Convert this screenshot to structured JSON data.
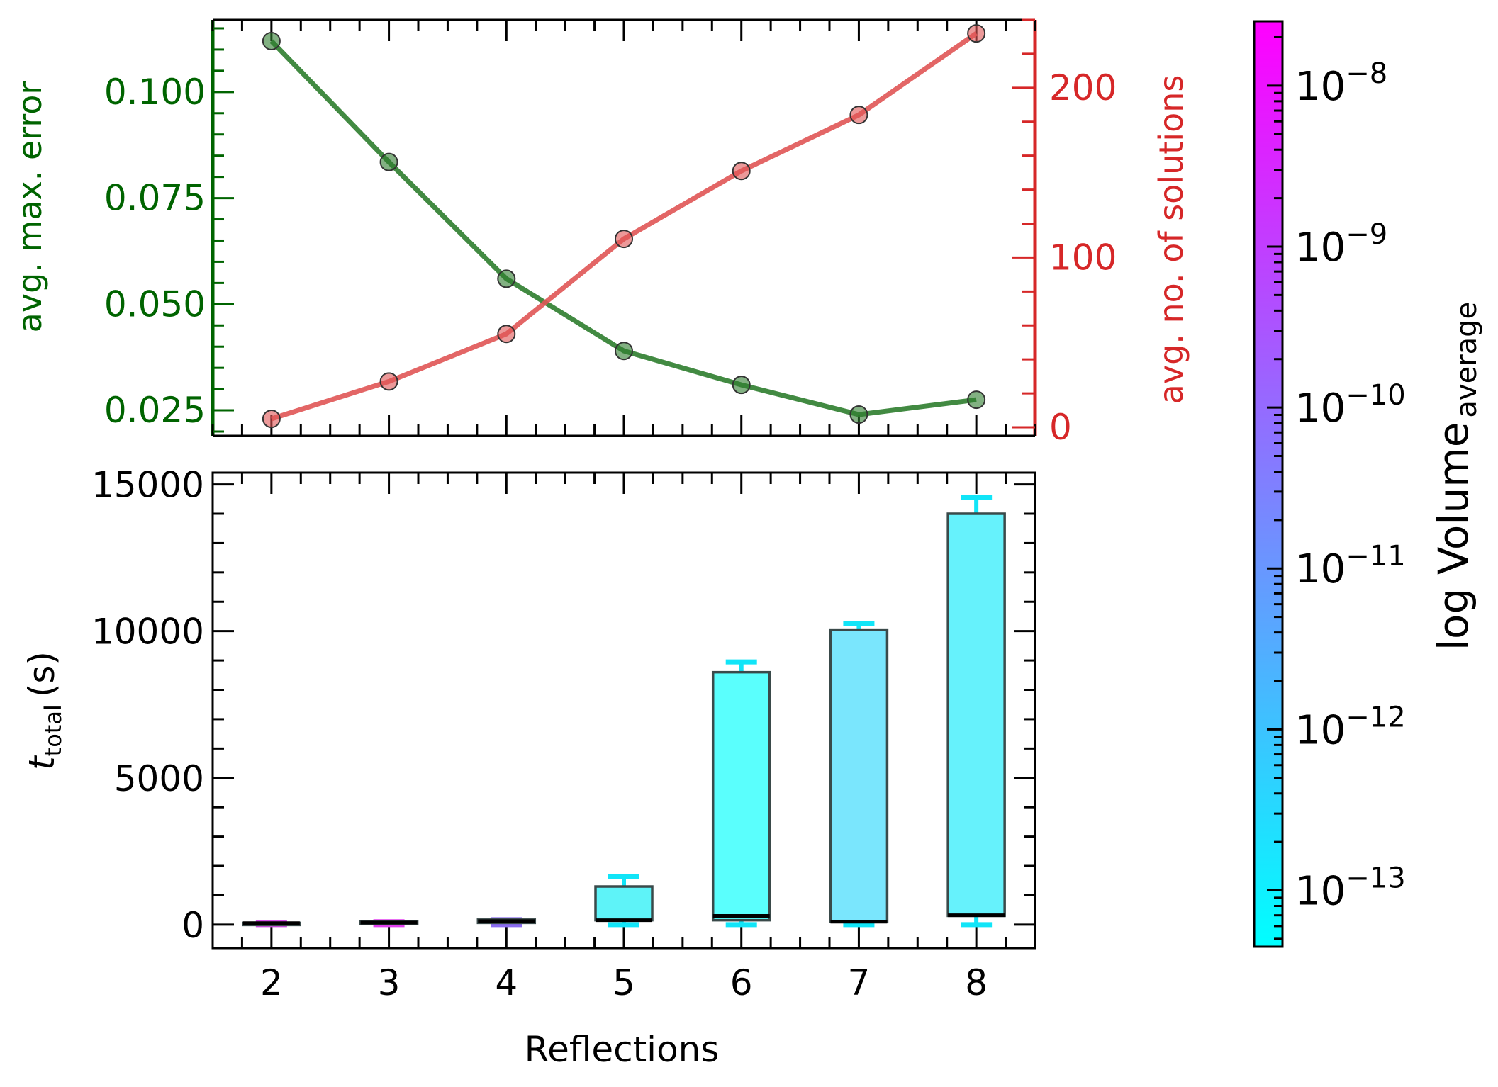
{
  "chart_data": [
    {
      "type": "line",
      "panel": "top",
      "x": [
        2,
        3,
        4,
        5,
        6,
        7,
        8
      ],
      "xlim": [
        1.5,
        8.5
      ],
      "series": [
        {
          "axis": "left",
          "color": "#2e7d2e",
          "values": [
            0.112,
            0.0835,
            0.056,
            0.039,
            0.031,
            0.024,
            0.0275
          ]
        },
        {
          "axis": "right",
          "color": "#e05555",
          "values": [
            5,
            27,
            55,
            111,
            151,
            184,
            232
          ]
        }
      ],
      "left_axis": {
        "label": "avg. max. error",
        "color": "#006400",
        "ylim": [
          0.019,
          0.117
        ],
        "ticks": [
          0.025,
          0.05,
          0.075,
          0.1
        ],
        "tick_labels": [
          "0.025",
          "0.050",
          "0.075",
          "0.100"
        ]
      },
      "right_axis": {
        "label": "avg. no. of solutions",
        "color": "#d62728",
        "ylim": [
          -5,
          240
        ],
        "ticks": [
          0,
          100,
          200
        ],
        "tick_labels": [
          "0",
          "100",
          "200"
        ]
      }
    },
    {
      "type": "bar",
      "panel": "bottom",
      "categories": [
        "2",
        "3",
        "4",
        "5",
        "6",
        "7",
        "8"
      ],
      "x": [
        2,
        3,
        4,
        5,
        6,
        7,
        8
      ],
      "xlim": [
        1.5,
        8.5
      ],
      "ylim": [
        -800,
        15400
      ],
      "box_low": [
        20,
        40,
        60,
        150,
        150,
        100,
        300
      ],
      "box_high": [
        60,
        100,
        170,
        1300,
        8600,
        10050,
        14000
      ],
      "median": [
        50,
        70,
        120,
        150,
        300,
        100,
        320
      ],
      "whisker_low": [
        0,
        0,
        0,
        0,
        0,
        0,
        0
      ],
      "whisker_high": [
        60,
        100,
        170,
        1650,
        8950,
        10250,
        14550
      ],
      "box_colors": [
        "#f03ef0",
        "#e53ff1",
        "#a36cf2",
        "#5ef3f8",
        "#5afffd",
        "#7ae6fd",
        "#66f2fc"
      ],
      "whisker_colors": [
        "#d44ee6",
        "#e040ee",
        "#8a6cf0",
        "#11e5f8",
        "#11e5f8",
        "#11e5f8",
        "#11e5f8"
      ],
      "xlabel": "Reflections",
      "ylabel_main": "t",
      "ylabel_sub": "total",
      "ylabel_unit": "(s)",
      "ticks": [
        0,
        5000,
        10000,
        15000
      ],
      "tick_labels": [
        "0",
        "5000",
        "10000",
        "15000"
      ]
    }
  ],
  "colorbar": {
    "label_main": "log Volume",
    "label_sub": "average",
    "scale": "log",
    "range_exp": [
      -13.35,
      -7.6
    ],
    "ticks_exp": [
      -13,
      -12,
      -11,
      -10,
      -9,
      -8
    ],
    "tick_base": "10",
    "tick_exponents": [
      "−13",
      "−12",
      "−11",
      "−10",
      "−9",
      "−8"
    ],
    "color_low": "#00ffff",
    "color_high": "#ff00ff"
  }
}
